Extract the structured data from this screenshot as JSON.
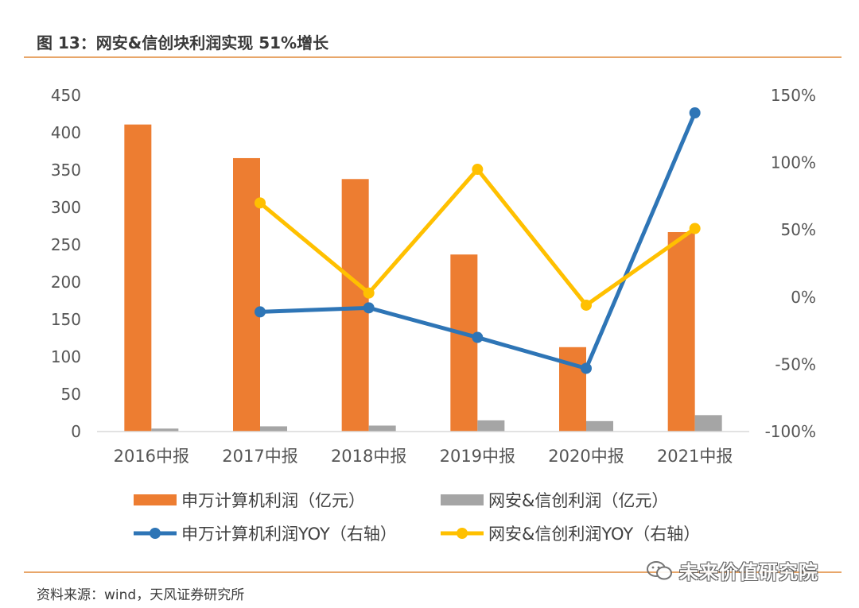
{
  "figure_title": "图 13：网安&信创块利润实现 51%增长",
  "source": "资料来源：wind，天风证券研究所",
  "watermark": "未来价值研究院",
  "colors": {
    "orange": "#ED7D31",
    "gray": "#A5A5A5",
    "blue": "#2E75B6",
    "yellow": "#FFC000",
    "rule": "#E8A66A"
  },
  "chart_data": {
    "type": "bar",
    "categories": [
      "2016中报",
      "2017中报",
      "2018中报",
      "2019中报",
      "2020中报",
      "2021中报"
    ],
    "left_axis": {
      "min": 0,
      "max": 450,
      "step": 50,
      "ticks": [
        "0",
        "50",
        "100",
        "150",
        "200",
        "250",
        "300",
        "350",
        "400",
        "450"
      ]
    },
    "right_axis": {
      "min": -100,
      "max": 150,
      "step": 50,
      "ticks": [
        "-100%",
        "-50%",
        "0%",
        "50%",
        "100%",
        "150%"
      ]
    },
    "bar_series": [
      {
        "name": "申万计算机利润（亿元）",
        "color_key": "orange",
        "values": [
          411,
          366,
          338,
          237,
          113,
          267
        ]
      },
      {
        "name": "网安&信创利润（亿元）",
        "color_key": "gray",
        "values": [
          4,
          7,
          8,
          15,
          14,
          22
        ]
      }
    ],
    "line_series": [
      {
        "name": "申万计算机利润YOY（右轴）",
        "color_key": "blue",
        "values": [
          null,
          -11,
          -8,
          -30,
          -53,
          137
        ]
      },
      {
        "name": "网安&信创利润YOY（右轴）",
        "color_key": "yellow",
        "values": [
          null,
          70,
          3,
          95,
          -6,
          51
        ]
      }
    ]
  }
}
